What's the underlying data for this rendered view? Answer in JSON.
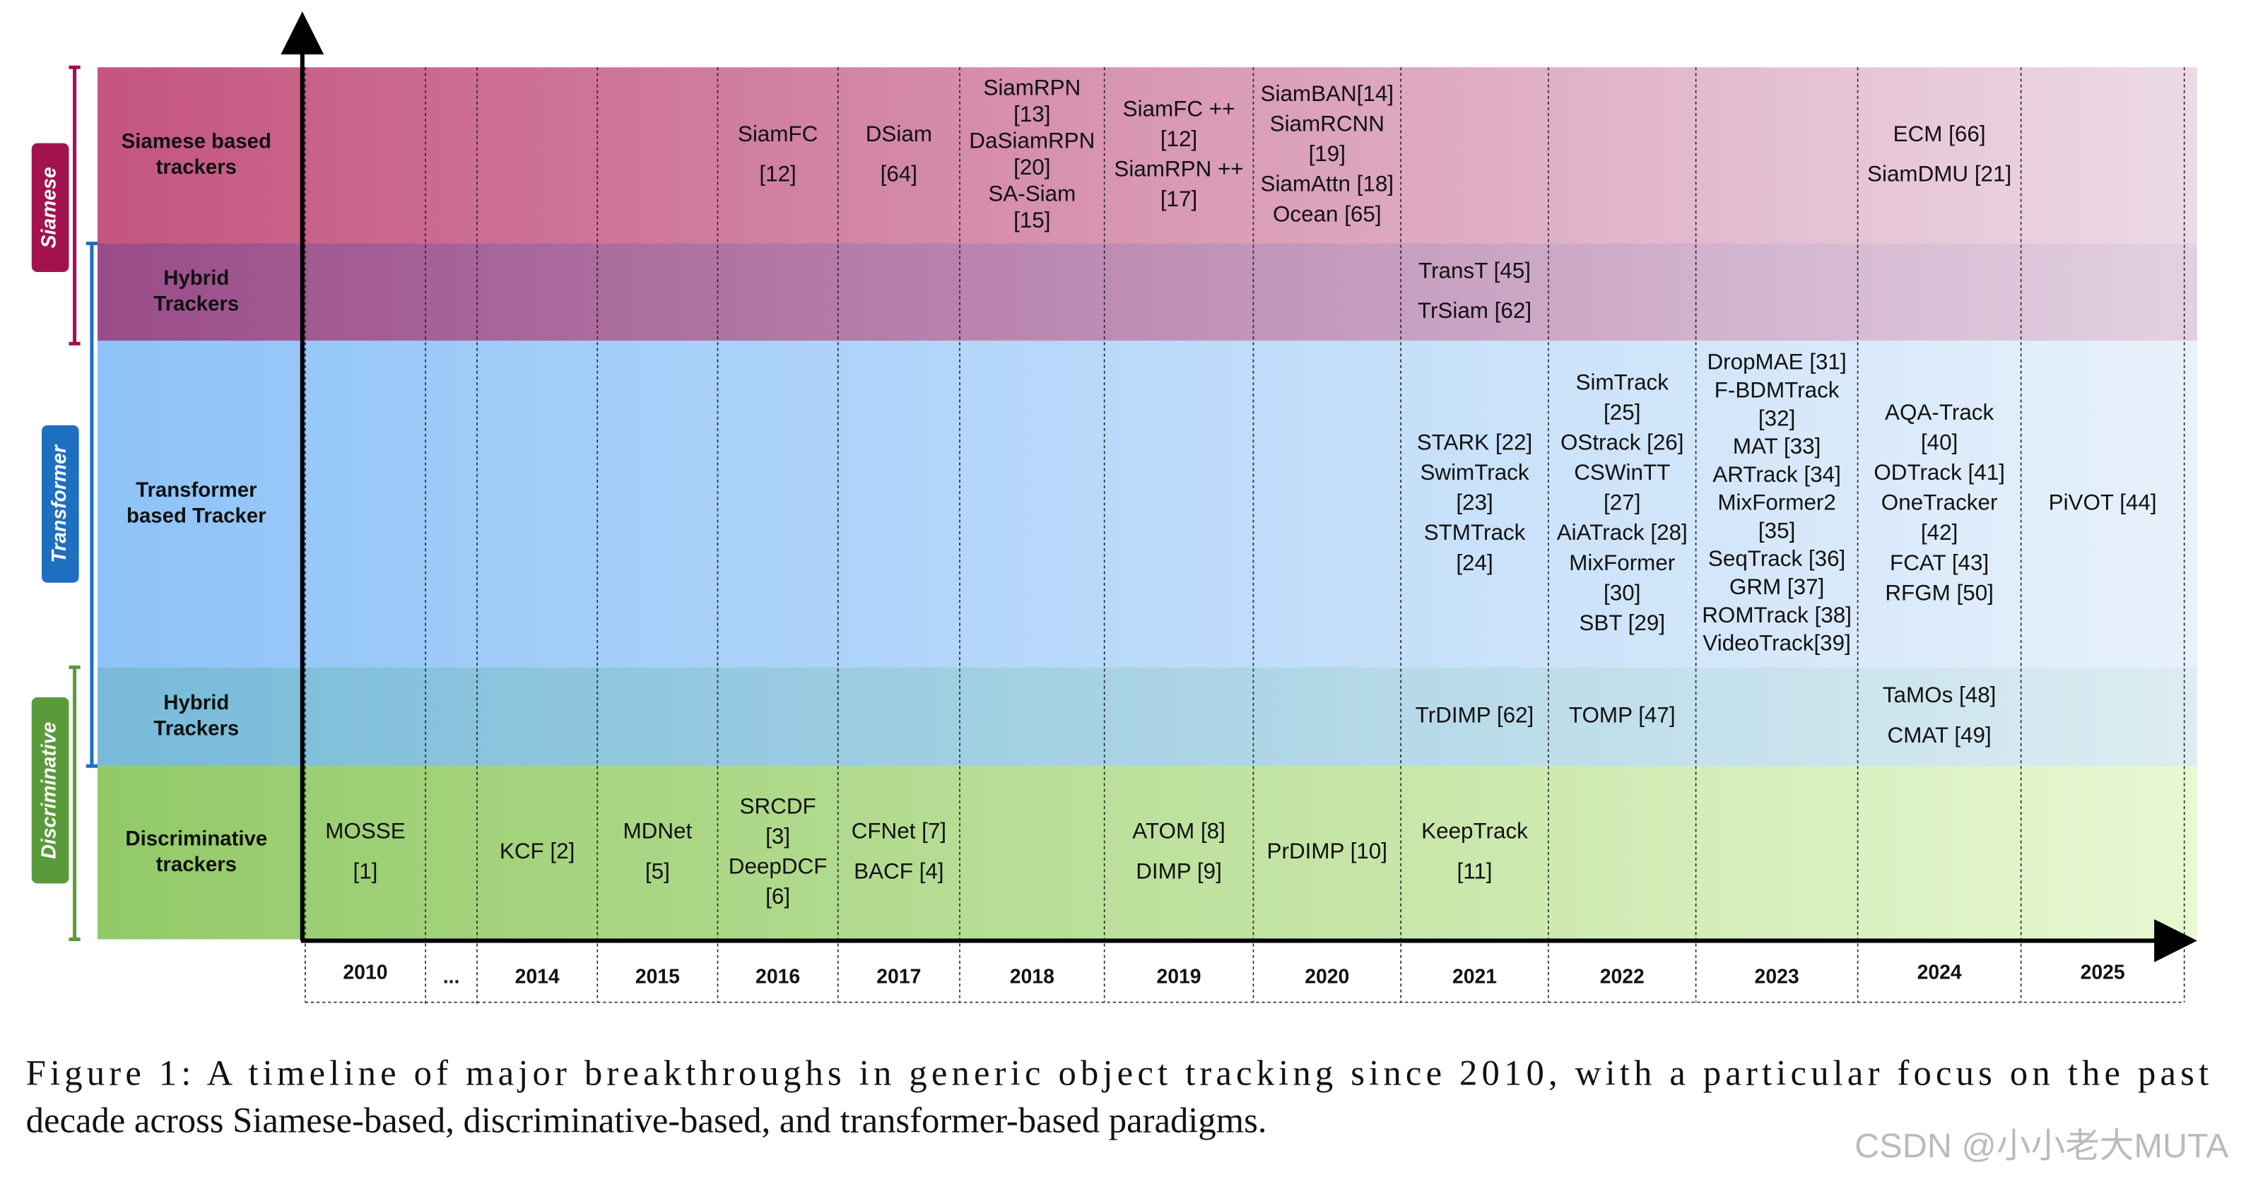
{
  "figure": {
    "groups": [
      "Siamese",
      "Transformer",
      "Discriminative"
    ],
    "rows": [
      {
        "label": [
          "Siamese based",
          "trackers"
        ],
        "cells": [
          [],
          [],
          [],
          [],
          [
            "SiamFC",
            "[12]"
          ],
          [
            "DSiam",
            "[64]"
          ],
          [
            "SiamRPN",
            "[13]",
            "DaSiamRPN",
            "[20]",
            "SA-Siam",
            "[15]"
          ],
          [
            "SiamFC ++",
            "[12]",
            "SiamRPN ++",
            "[17]"
          ],
          [
            "SiamBAN[14]",
            "SiamRCNN",
            "[19]",
            "SiamAttn [18]",
            "Ocean [65]"
          ],
          [],
          [],
          [],
          [
            "ECM [66]",
            "SiamDMU [21]"
          ],
          []
        ]
      },
      {
        "label": [
          "Hybrid",
          "Trackers"
        ],
        "cells": [
          [],
          [],
          [],
          [],
          [],
          [],
          [],
          [],
          [],
          [
            "TransT [45]",
            "TrSiam [62]"
          ],
          [],
          [],
          [],
          []
        ]
      },
      {
        "label": [
          "Transformer",
          "based Tracker"
        ],
        "cells": [
          [],
          [],
          [],
          [],
          [],
          [],
          [],
          [],
          [],
          [
            "STARK [22]",
            "SwimTrack",
            "[23]",
            "STMTrack",
            "[24]"
          ],
          [
            "SimTrack",
            "[25]",
            "OStrack [26]",
            "CSWinTT",
            "[27]",
            "AiATrack [28]",
            "MixFormer",
            "[30]",
            "SBT [29]"
          ],
          [
            "DropMAE [31]",
            "F-BDMTrack",
            "[32]",
            "MAT [33]",
            "ARTrack [34]",
            "MixFormer2",
            "[35]",
            "SeqTrack [36]",
            "GRM [37]",
            "ROMTrack [38]",
            "VideoTrack[39]"
          ],
          [
            "AQA-Track",
            "[40]",
            "ODTrack [41]",
            "OneTracker",
            "[42]",
            "FCAT [43]",
            "RFGM [50]"
          ],
          [
            "PiVOT [44]"
          ]
        ]
      },
      {
        "label": [
          "Hybrid",
          "Trackers"
        ],
        "cells": [
          [],
          [],
          [],
          [],
          [],
          [],
          [],
          [],
          [],
          [
            "TrDIMP [62]"
          ],
          [
            "TOMP [47]"
          ],
          [],
          [
            "TaMOs [48]",
            "CMAT [49]"
          ],
          []
        ]
      },
      {
        "label": [
          "Discriminative",
          "trackers"
        ],
        "cells": [
          [
            "MOSSE",
            "[1]"
          ],
          [],
          [
            "KCF [2]"
          ],
          [
            "MDNet",
            "[5]"
          ],
          [
            "SRCDF",
            "[3]",
            "DeepDCF",
            "[6]"
          ],
          [
            "CFNet [7]",
            "BACF [4]"
          ],
          [],
          [
            "ATOM [8]",
            "DIMP [9]"
          ],
          [
            "PrDIMP [10]"
          ],
          [
            "KeepTrack",
            "[11]"
          ],
          [],
          [],
          [],
          []
        ]
      }
    ],
    "years": [
      "2010",
      "...",
      "2014",
      "2015",
      "2016",
      "2017",
      "2018",
      "2019",
      "2020",
      "2021",
      "2022",
      "2023",
      "2024",
      "2025"
    ],
    "caption": [
      "Figure 1: A timeline of major breakthroughs in generic object tracking since 2010, with a particular focus on the past",
      "decade across Siamese-based, discriminative-based, and transformer-based paradigms."
    ],
    "watermark": "CSDN @小小老大MUTA"
  }
}
